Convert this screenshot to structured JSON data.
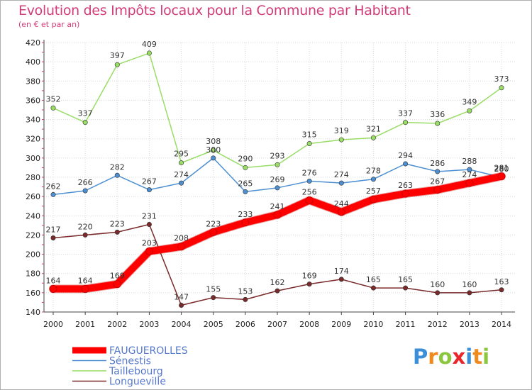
{
  "chart_data": {
    "type": "line",
    "title": "Evolution des Impôts locaux pour la Commune par Habitant",
    "subtitle": "(en € et par an)",
    "x": [
      "2000",
      "2001",
      "2002",
      "2003",
      "2004",
      "2005",
      "2006",
      "2007",
      "2008",
      "2009",
      "2010",
      "2011",
      "2012",
      "2013",
      "2014"
    ],
    "ylim": [
      140,
      420
    ],
    "yticks": [
      140,
      160,
      180,
      200,
      220,
      240,
      260,
      280,
      300,
      320,
      340,
      360,
      380,
      400,
      420
    ],
    "grid": true,
    "legend_position": "bottom-left",
    "series": [
      {
        "name": "FAUGUEROLLES",
        "color": "#ff0000",
        "values": [
          164,
          164,
          169,
          203,
          208,
          223,
          233,
          241,
          256,
          244,
          257,
          263,
          267,
          274,
          281
        ]
      },
      {
        "name": "Sénestis",
        "color": "#4d8fd1",
        "values": [
          262,
          266,
          282,
          267,
          274,
          300,
          265,
          269,
          276,
          274,
          278,
          294,
          286,
          288,
          280
        ]
      },
      {
        "name": "Taillebourg",
        "color": "#99dd66",
        "values": [
          352,
          337,
          397,
          409,
          295,
          308,
          290,
          293,
          315,
          319,
          321,
          337,
          336,
          349,
          373
        ]
      },
      {
        "name": "Longueville",
        "color": "#7a2a2a",
        "values": [
          217,
          220,
          223,
          231,
          147,
          155,
          153,
          162,
          169,
          174,
          165,
          165,
          160,
          160,
          163
        ]
      }
    ]
  },
  "logo": {
    "letters": [
      "P",
      "r",
      "o",
      "x",
      "i",
      "t",
      "i"
    ],
    "colors": [
      "#3a8fd8",
      "#f08a1c",
      "#8cc63f",
      "#e8262c",
      "#3a8fd8",
      "#f08a1c",
      "#8cc63f"
    ]
  }
}
